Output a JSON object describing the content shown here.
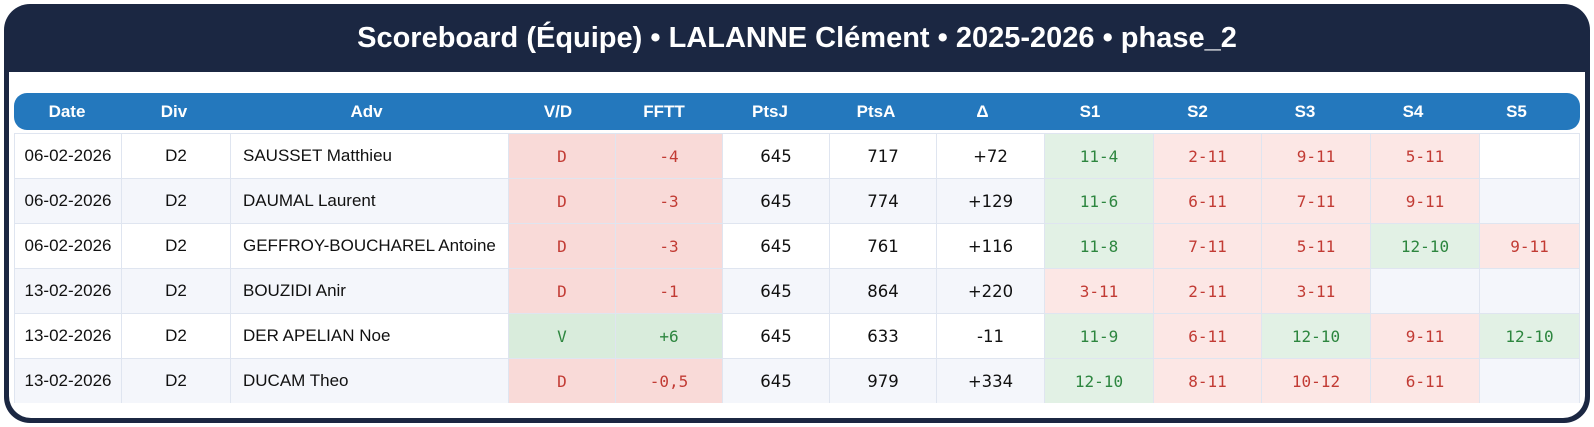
{
  "header": {
    "title": "Scoreboard (Équipe) • LALANNE Clément • 2025-2026 • phase_2"
  },
  "colors": {
    "frame_navy": "#1b2742",
    "header_blue": "#2478bd",
    "win_text": "#2d863f",
    "loss_text": "#c23b34",
    "win_bg": "#d9ecdc",
    "loss_bg": "#f9dad8",
    "win_set_bg": "#e2f1e5",
    "loss_set_bg": "#fce7e5",
    "alt_row_bg": "#f4f6fb"
  },
  "table": {
    "columns": [
      "Date",
      "Div",
      "Adv",
      "V/D",
      "FFTT",
      "PtsJ",
      "PtsA",
      "Δ",
      "S1",
      "S2",
      "S3",
      "S4",
      "S5"
    ],
    "rows": [
      {
        "date": "06-02-2026",
        "div": "D2",
        "adv": "SAUSSET Matthieu",
        "vd": "D",
        "fftt": "-4",
        "ptsj": "645",
        "ptsa": "717",
        "delta": "+72",
        "sets": [
          {
            "score": "11-4",
            "result": "w"
          },
          {
            "score": "2-11",
            "result": "l"
          },
          {
            "score": "9-11",
            "result": "l"
          },
          {
            "score": "5-11",
            "result": "l"
          },
          null
        ]
      },
      {
        "date": "06-02-2026",
        "div": "D2",
        "adv": "DAUMAL Laurent",
        "vd": "D",
        "fftt": "-3",
        "ptsj": "645",
        "ptsa": "774",
        "delta": "+129",
        "sets": [
          {
            "score": "11-6",
            "result": "w"
          },
          {
            "score": "6-11",
            "result": "l"
          },
          {
            "score": "7-11",
            "result": "l"
          },
          {
            "score": "9-11",
            "result": "l"
          },
          null
        ]
      },
      {
        "date": "06-02-2026",
        "div": "D2",
        "adv": "GEFFROY-BOUCHAREL Antoine",
        "vd": "D",
        "fftt": "-3",
        "ptsj": "645",
        "ptsa": "761",
        "delta": "+116",
        "sets": [
          {
            "score": "11-8",
            "result": "w"
          },
          {
            "score": "7-11",
            "result": "l"
          },
          {
            "score": "5-11",
            "result": "l"
          },
          {
            "score": "12-10",
            "result": "w"
          },
          {
            "score": "9-11",
            "result": "l"
          }
        ]
      },
      {
        "date": "13-02-2026",
        "div": "D2",
        "adv": "BOUZIDI Anir",
        "vd": "D",
        "fftt": "-1",
        "ptsj": "645",
        "ptsa": "864",
        "delta": "+220",
        "sets": [
          {
            "score": "3-11",
            "result": "l"
          },
          {
            "score": "2-11",
            "result": "l"
          },
          {
            "score": "3-11",
            "result": "l"
          },
          null,
          null
        ]
      },
      {
        "date": "13-02-2026",
        "div": "D2",
        "adv": "DER APELIAN Noe",
        "vd": "V",
        "fftt": "+6",
        "ptsj": "645",
        "ptsa": "633",
        "delta": "-11",
        "sets": [
          {
            "score": "11-9",
            "result": "w"
          },
          {
            "score": "6-11",
            "result": "l"
          },
          {
            "score": "12-10",
            "result": "w"
          },
          {
            "score": "9-11",
            "result": "l"
          },
          {
            "score": "12-10",
            "result": "w"
          }
        ]
      },
      {
        "date": "13-02-2026",
        "div": "D2",
        "adv": "DUCAM Theo",
        "vd": "D",
        "fftt": "-0,5",
        "ptsj": "645",
        "ptsa": "979",
        "delta": "+334",
        "sets": [
          {
            "score": "12-10",
            "result": "w"
          },
          {
            "score": "8-11",
            "result": "l"
          },
          {
            "score": "10-12",
            "result": "l"
          },
          {
            "score": "6-11",
            "result": "l"
          },
          null
        ]
      }
    ]
  }
}
